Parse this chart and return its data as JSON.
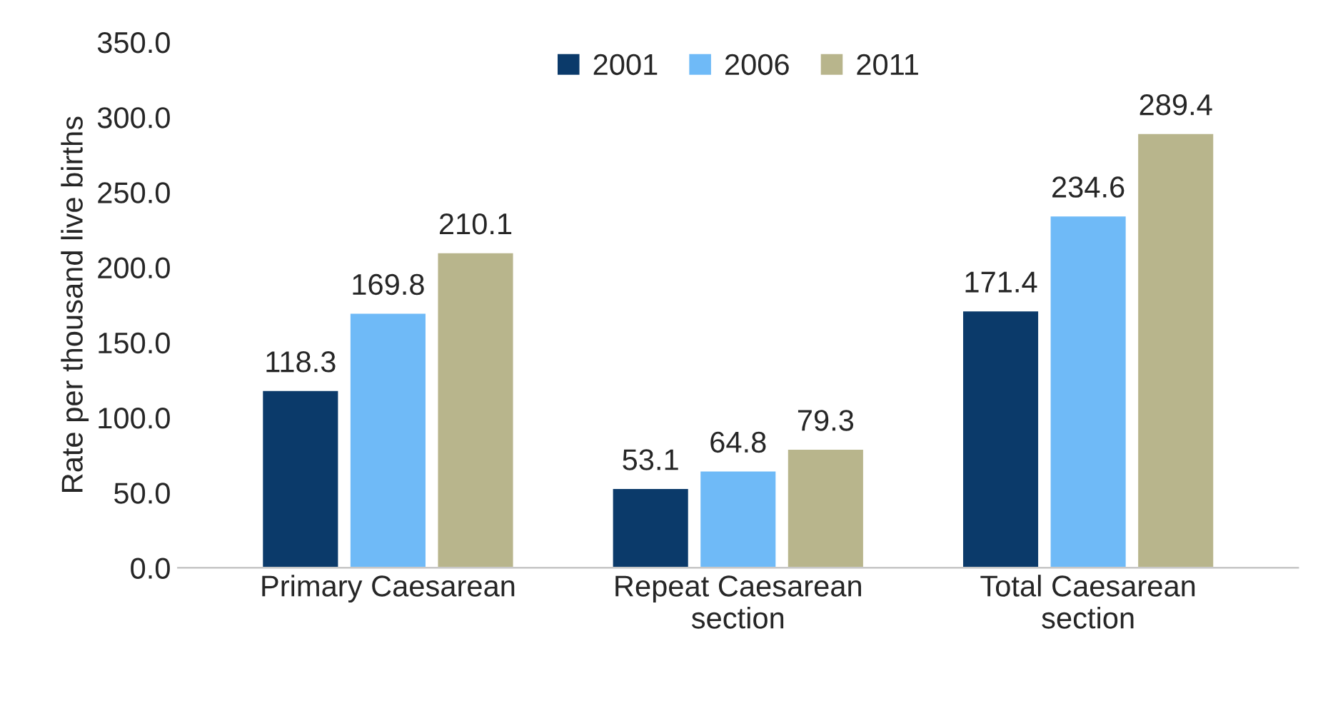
{
  "chart_data": {
    "type": "bar",
    "ylabel": "Rate per thousand live births",
    "categories": [
      "Primary Caesarean",
      "Repeat Caesarean\nsection",
      "Total Caesarean\nsection"
    ],
    "series": [
      {
        "name": "2001",
        "color": "#0b3a6a",
        "values": [
          118.3,
          53.1,
          171.4
        ]
      },
      {
        "name": "2006",
        "color": "#6fbaf7",
        "values": [
          169.8,
          64.8,
          234.6
        ]
      },
      {
        "name": "2011",
        "color": "#b8b58c",
        "values": [
          210.1,
          79.3,
          289.4
        ]
      }
    ],
    "ylim": [
      0,
      350
    ],
    "yticks": [
      {
        "value": 0,
        "label": "0.0"
      },
      {
        "value": 50,
        "label": "50.0"
      },
      {
        "value": 100,
        "label": "100.0"
      },
      {
        "value": 150,
        "label": "150.0"
      },
      {
        "value": 200,
        "label": "200.0"
      },
      {
        "value": 250,
        "label": "250.0"
      },
      {
        "value": 300,
        "label": "300.0"
      },
      {
        "value": 350,
        "label": "350.0"
      }
    ],
    "data_labels": true,
    "legend": "top",
    "grid": false
  }
}
